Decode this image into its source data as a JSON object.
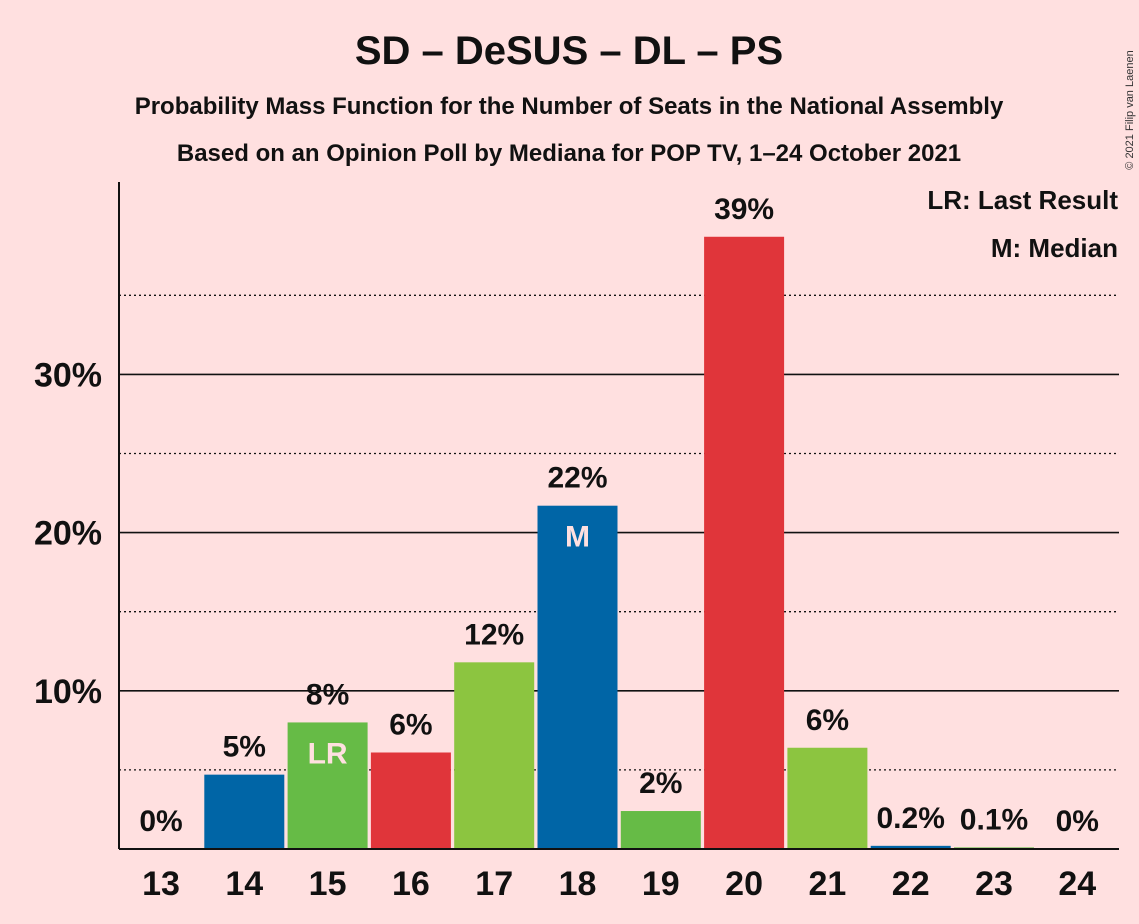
{
  "title": "SD – DeSUS – DL – PS",
  "subtitle1": "Probability Mass Function for the Number of Seats in the National Assembly",
  "subtitle2": "Based on an Opinion Poll by Mediana for POP TV, 1–24 October 2021",
  "copyright": "© 2021 Filip van Laenen",
  "legend": {
    "last_result": "LR: Last Result",
    "median": "M: Median"
  },
  "colors": {
    "background": "#FFE0E0",
    "blue": "#0065A6",
    "green": "#66BB46",
    "red": "#E0353A",
    "light_green": "#8CC540"
  },
  "chart_data": {
    "type": "bar",
    "title": "SD – DeSUS – DL – PS",
    "xlabel": "",
    "ylabel": "",
    "categories": [
      "13",
      "14",
      "15",
      "16",
      "17",
      "18",
      "19",
      "20",
      "21",
      "22",
      "23",
      "24"
    ],
    "values": [
      0,
      4.7,
      8.0,
      6.1,
      11.8,
      21.7,
      2.4,
      38.7,
      6.4,
      0.2,
      0.1,
      0
    ],
    "labels": [
      "0%",
      "5%",
      "8%",
      "6%",
      "12%",
      "22%",
      "2%",
      "39%",
      "6%",
      "0.2%",
      "0.1%",
      "0%"
    ],
    "colors": [
      "#0065A6",
      "#0065A6",
      "#66BB46",
      "#E0353A",
      "#8CC540",
      "#0065A6",
      "#66BB46",
      "#E0353A",
      "#8CC540",
      "#0065A6",
      "#66BB46",
      "#E0353A"
    ],
    "markers": {
      "15": "LR",
      "18": "M"
    },
    "ylim": [
      0,
      42
    ],
    "yticks": [
      10,
      20,
      30
    ],
    "ytick_labels": [
      "10%",
      "20%",
      "30%"
    ],
    "minor_gridlines": [
      5,
      15,
      25,
      35
    ],
    "grid": true,
    "legend_position": "top-right"
  }
}
